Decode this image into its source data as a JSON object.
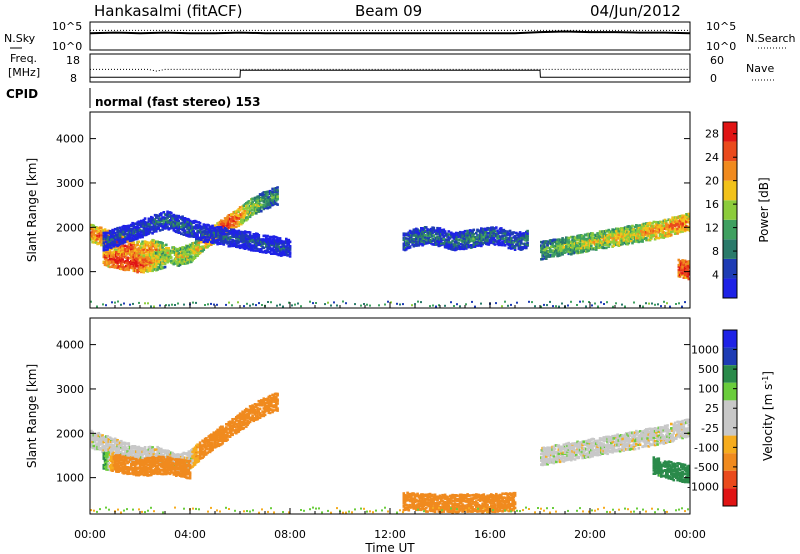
{
  "header": {
    "station": "Hankasalmi (fitACF)",
    "beam": "Beam 09",
    "date": "04/Jun/2012"
  },
  "top_panel": {
    "left_label_1": "N.Sky",
    "left_label_2": "Freq.",
    "left_label_3": "[MHz]",
    "cpid_label": "CPID",
    "right_label_1": "N.Search",
    "right_label_2": "Nave",
    "nsky_ticks_left": [
      "10^5",
      "10^0"
    ],
    "nsky_ticks_right": [
      "10^5",
      "10^0"
    ],
    "freq_ticks_left": [
      "18",
      "8"
    ],
    "nave_ticks_right": [
      "60",
      "0"
    ],
    "cpid_text": "normal (fast stereo) 153"
  },
  "colors": {
    "power_scale": [
      "#1e22e6",
      "#1e3cb4",
      "#2a7a6a",
      "#3fa060",
      "#8ccc3c",
      "#f2c21a",
      "#f08a1e",
      "#ea4a1c",
      "#e01414"
    ],
    "velocity_scale": [
      "#e01414",
      "#ea4a1c",
      "#f08a1e",
      "#f6ac1e",
      "#c8c8c8",
      "#c8c8c8",
      "#6acd3c",
      "#2a8a4a",
      "#1e3cb4",
      "#1e22e6"
    ],
    "ground_scatter": "#c8c8c8"
  },
  "chart_data": [
    {
      "type": "line",
      "title": "",
      "series": [
        {
          "name": "N.Sky",
          "x": [
            "00:00",
            "01:00",
            "02:00",
            "03:00",
            "04:00",
            "05:00",
            "06:00",
            "07:00",
            "08:00",
            "09:00",
            "10:00",
            "11:00",
            "12:00",
            "13:00",
            "14:00",
            "15:00",
            "16:00",
            "17:00",
            "18:00",
            "19:00",
            "20:00",
            "21:00",
            "22:00",
            "23:00",
            "24:00"
          ],
          "values": [
            3.0,
            3.1,
            3.0,
            3.1,
            3.0,
            3.0,
            3.1,
            3.0,
            3.0,
            3.0,
            3.0,
            3.0,
            3.0,
            3.0,
            3.0,
            3.0,
            3.0,
            3.0,
            3.2,
            3.3,
            3.2,
            3.2,
            3.1,
            3.1,
            3.0
          ]
        },
        {
          "name": "N.Search",
          "x": [
            "00:00",
            "24:00"
          ],
          "values": [
            3.5,
            3.5
          ]
        }
      ],
      "ylim": [
        0,
        5
      ],
      "yscale": "log"
    },
    {
      "type": "line",
      "series": [
        {
          "name": "Freq",
          "x": [
            "00:00",
            "02:20",
            "02:40",
            "03:00",
            "06:00",
            "06:01",
            "18:00",
            "18:01",
            "24:00"
          ],
          "values": [
            10,
            10,
            9.4,
            10,
            10,
            10,
            10,
            10,
            10
          ]
        },
        {
          "name": "Nave",
          "x": [
            "00:00",
            "06:00",
            "06:01",
            "18:00",
            "18:01",
            "24:00"
          ],
          "values": [
            10,
            10,
            25,
            25,
            10,
            10
          ]
        }
      ],
      "ylim": [
        8,
        18
      ]
    },
    {
      "type": "heatmap",
      "title": "",
      "xlabel": "",
      "ylabel": "Slant Range [km]",
      "x_ticks": [
        "00:00",
        "04:00",
        "08:00",
        "12:00",
        "16:00",
        "20:00",
        "00:00"
      ],
      "y_ticks": [
        1000,
        2000,
        3000,
        4000
      ],
      "xlim": [
        "00:00",
        "24:00"
      ],
      "ylim": [
        180,
        4600
      ],
      "colorbar_label": "Power [dB]",
      "colorbar_ticks": [
        4,
        8,
        12,
        16,
        20,
        24,
        28
      ],
      "zlim": [
        0,
        30
      ],
      "echo_bands": [
        {
          "t": [
            0.0,
            0.5,
            1.0,
            1.5,
            2.0,
            2.5,
            3.0,
            3.5,
            4.0,
            4.5,
            5.0,
            5.5,
            6.0,
            6.5,
            7.0,
            7.5
          ],
          "range": [
            1900,
            1800,
            1700,
            1600,
            1500,
            1550,
            1450,
            1350,
            1450,
            1700,
            1900,
            2100,
            2300,
            2500,
            2650,
            2750
          ],
          "power": [
            22,
            24,
            24,
            26,
            22,
            22,
            18,
            18,
            18,
            22,
            24,
            28,
            22,
            16,
            12,
            12
          ]
        },
        {
          "t": [
            0.5,
            1.0,
            1.5,
            2.0,
            2.5,
            3.0
          ],
          "range": [
            1350,
            1300,
            1250,
            1200,
            1250,
            1300
          ],
          "power": [
            24,
            28,
            28,
            26,
            20,
            16
          ]
        },
        {
          "t": [
            18.0,
            18.5,
            19.0,
            19.5,
            20.0,
            20.5,
            21.0,
            21.5,
            22.0,
            22.5,
            23.0,
            23.5,
            24.0
          ],
          "range": [
            1500,
            1550,
            1600,
            1650,
            1700,
            1750,
            1800,
            1850,
            1900,
            1950,
            2000,
            2100,
            2150
          ],
          "power": [
            12,
            14,
            16,
            16,
            18,
            18,
            20,
            18,
            20,
            22,
            22,
            24,
            22
          ]
        },
        {
          "t": [
            12.5,
            13.0,
            13.5,
            14.0,
            14.5,
            15.0,
            15.5,
            16.0,
            16.5,
            17.0,
            17.5
          ],
          "range": [
            1700,
            1800,
            1850,
            1800,
            1700,
            1750,
            1800,
            1850,
            1800,
            1700,
            1750
          ],
          "power": [
            8,
            8,
            10,
            8,
            8,
            10,
            10,
            8,
            8,
            8,
            10
          ]
        },
        {
          "t": [
            0.5,
            1.0,
            1.5,
            2.0,
            2.5,
            3.0,
            3.5,
            4.0,
            4.5,
            5.0,
            5.5,
            6.0,
            6.5,
            7.0,
            7.5,
            8.0
          ],
          "range": [
            1700,
            1800,
            1900,
            2000,
            2100,
            2200,
            2100,
            2000,
            1900,
            1850,
            1800,
            1750,
            1700,
            1650,
            1600,
            1550
          ],
          "power": [
            6,
            6,
            6,
            6,
            6,
            8,
            8,
            8,
            6,
            6,
            6,
            6,
            6,
            6,
            6,
            6
          ]
        },
        {
          "t": [
            23.5,
            24.0
          ],
          "range": [
            1100,
            1050
          ],
          "power": [
            28,
            28
          ]
        }
      ]
    },
    {
      "type": "heatmap",
      "title": "",
      "xlabel": "Time UT",
      "ylabel": "Slant Range [km]",
      "x_ticks": [
        "00:00",
        "04:00",
        "08:00",
        "12:00",
        "16:00",
        "20:00",
        "00:00"
      ],
      "y_ticks": [
        1000,
        2000,
        3000,
        4000
      ],
      "xlim": [
        "00:00",
        "24:00"
      ],
      "ylim": [
        180,
        4600
      ],
      "colorbar_label": "Velocity [m s^-1]",
      "colorbar_ticks": [
        1000,
        500,
        100,
        25,
        -25,
        -100,
        -500,
        -1000
      ],
      "zlim": [
        -1200,
        1200
      ],
      "echo_bands": [
        {
          "t": [
            0.0,
            0.5,
            1.0,
            1.5,
            2.0,
            2.5,
            3.0,
            3.5,
            4.0,
            4.5,
            5.0,
            5.5,
            6.0,
            6.5,
            7.0,
            7.5
          ],
          "range": [
            1900,
            1800,
            1700,
            1600,
            1500,
            1550,
            1450,
            1350,
            1450,
            1700,
            1900,
            2100,
            2300,
            2500,
            2650,
            2750
          ],
          "velocity": [
            0,
            0,
            0,
            0,
            0,
            0,
            0,
            0,
            0,
            -200,
            -300,
            -400,
            -400,
            -350,
            -300,
            -300
          ]
        },
        {
          "t": [
            0.5,
            1.0,
            1.5,
            2.0,
            2.5,
            3.0,
            3.5,
            4.0
          ],
          "range": [
            1400,
            1350,
            1300,
            1250,
            1300,
            1300,
            1250,
            1200
          ],
          "velocity": [
            150,
            -200,
            -300,
            -300,
            -250,
            -200,
            -200,
            -150
          ]
        },
        {
          "t": [
            18.0,
            18.5,
            19.0,
            19.5,
            20.0,
            20.5,
            21.0,
            21.5,
            22.0,
            22.5,
            23.0,
            23.5,
            24.0
          ],
          "range": [
            1500,
            1550,
            1600,
            1650,
            1700,
            1750,
            1800,
            1850,
            1900,
            1950,
            2000,
            2100,
            2150
          ],
          "velocity": [
            0,
            0,
            0,
            0,
            0,
            0,
            0,
            0,
            0,
            0,
            0,
            0,
            0
          ]
        },
        {
          "t": [
            12.5,
            13.0,
            13.5,
            14.0,
            14.5,
            15.0,
            15.5,
            16.0,
            16.5,
            17.0
          ],
          "range": [
            500,
            480,
            460,
            450,
            450,
            460,
            450,
            450,
            470,
            480
          ],
          "velocity": [
            -300,
            -300,
            -250,
            -250,
            -300,
            -300,
            -250,
            -250,
            -300,
            -300
          ]
        },
        {
          "t": [
            22.5,
            23.0,
            23.5,
            24.0
          ],
          "range": [
            1300,
            1200,
            1150,
            1100
          ],
          "velocity": [
            150,
            150,
            200,
            150
          ]
        }
      ]
    }
  ]
}
